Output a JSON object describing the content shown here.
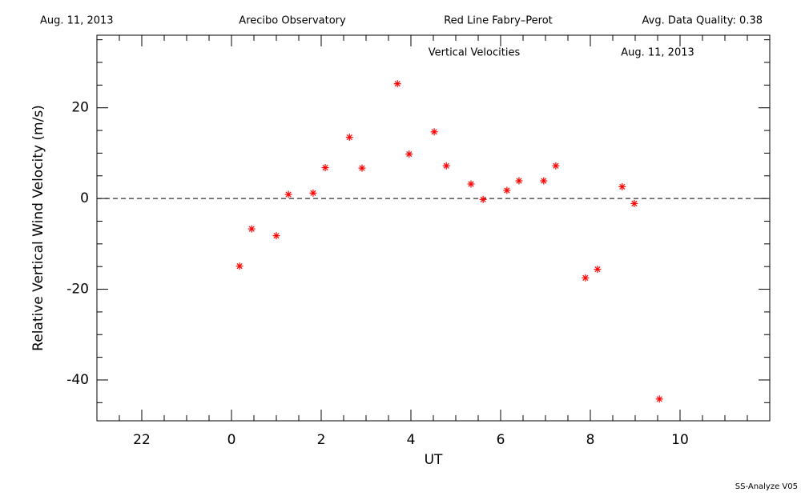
{
  "header": {
    "left": "Aug. 11, 2013",
    "center_left": "Arecibo Observatory",
    "center_right": "Red Line Fabry–Perot",
    "right": "Avg. Data Quality: 0.38"
  },
  "footer": "SS-Analyze V05",
  "chart_data": {
    "type": "scatter",
    "title": "Vertical Velocities",
    "subtitle": "Aug. 11, 2013",
    "xlabel": "UT",
    "ylabel": "Relative Vertical Wind Velocity (m/s)",
    "xlim": [
      -3,
      12
    ],
    "ylim": [
      -49,
      36
    ],
    "xticks": [
      {
        "value": -2,
        "label": "22"
      },
      0,
      2,
      4,
      6,
      8,
      10
    ],
    "yticks": [
      -40,
      -20,
      0,
      20
    ],
    "xminorticks": [
      -2.5,
      -1.5,
      -1,
      -0.5,
      0.5,
      1,
      1.5,
      2.5,
      3,
      3.5,
      4.5,
      5,
      5.5,
      6.5,
      7,
      7.5,
      8.5,
      9,
      9.5,
      10.5,
      11,
      11.5
    ],
    "yminorticks": [
      -45,
      -35,
      -30,
      -25,
      -15,
      -10,
      -5,
      5,
      10,
      15,
      25,
      30,
      35
    ],
    "zero_line": true,
    "marker": "asterisk",
    "color": "#ff0000",
    "x": [
      0.18,
      0.45,
      1.0,
      1.27,
      1.82,
      2.09,
      2.63,
      2.91,
      3.7,
      3.96,
      4.52,
      4.79,
      5.34,
      5.61,
      6.14,
      6.41,
      6.96,
      7.23,
      7.89,
      8.16,
      8.71,
      8.98,
      9.54
    ],
    "values": [
      -14.9,
      -6.7,
      -8.2,
      0.9,
      1.2,
      6.8,
      13.5,
      6.7,
      25.3,
      9.8,
      14.7,
      7.2,
      3.2,
      -0.2,
      1.8,
      3.9,
      3.9,
      7.2,
      -17.5,
      -15.6,
      2.6,
      -1.1,
      -44.2
    ]
  }
}
